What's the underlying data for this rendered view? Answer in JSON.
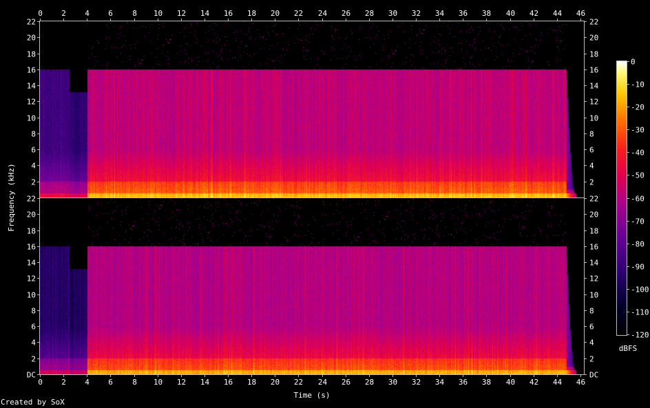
{
  "chart_data": {
    "type": "heatmap",
    "title": "",
    "xlabel": "Time (s)",
    "ylabel": "Frequency (kHz)",
    "colorbar_label": "dBFS",
    "xlim": [
      0,
      46.3
    ],
    "ylim": [
      0,
      22
    ],
    "x_ticks": [
      "0",
      "2",
      "4",
      "6",
      "8",
      "10",
      "12",
      "14",
      "16",
      "18",
      "20",
      "22",
      "24",
      "26",
      "28",
      "30",
      "32",
      "34",
      "36",
      "38",
      "40",
      "42",
      "44",
      "46"
    ],
    "y_ticks_top": [
      "2",
      "4",
      "6",
      "8",
      "10",
      "12",
      "14",
      "16",
      "18",
      "20",
      "22"
    ],
    "y_ticks_bottom": [
      "DC",
      "2",
      "4",
      "6",
      "8",
      "10",
      "12",
      "14",
      "16",
      "18",
      "20",
      "22"
    ],
    "colorbar_ticks": [
      "0",
      "-10",
      "-20",
      "-30",
      "-40",
      "-50",
      "-60",
      "-70",
      "-80",
      "-90",
      "-100",
      "-110",
      "-120"
    ],
    "colorbar_range": [
      -120,
      0
    ],
    "channels": [
      {
        "name": "",
        "segments": [
          {
            "t0": 0,
            "t1": 2.5,
            "cutoff_khz": 16,
            "level_dbfs": -88
          },
          {
            "t0": 2.5,
            "t1": 4.0,
            "cutoff_khz": 13.2,
            "level_dbfs": -92
          },
          {
            "t0": 4.0,
            "t1": 44.8,
            "cutoff_khz": 16,
            "level_dbfs": -58
          }
        ],
        "fade_end_s": 45.6
      },
      {
        "name": "",
        "segments": [
          {
            "t0": 0,
            "t1": 2.5,
            "cutoff_khz": 16,
            "level_dbfs": -95
          },
          {
            "t0": 2.5,
            "t1": 4.0,
            "cutoff_khz": 13.2,
            "level_dbfs": -98
          },
          {
            "t0": 4.0,
            "t1": 44.8,
            "cutoff_khz": 16,
            "level_dbfs": -60
          }
        ],
        "fade_end_s": 45.6
      }
    ]
  },
  "footer": "Created by SoX"
}
